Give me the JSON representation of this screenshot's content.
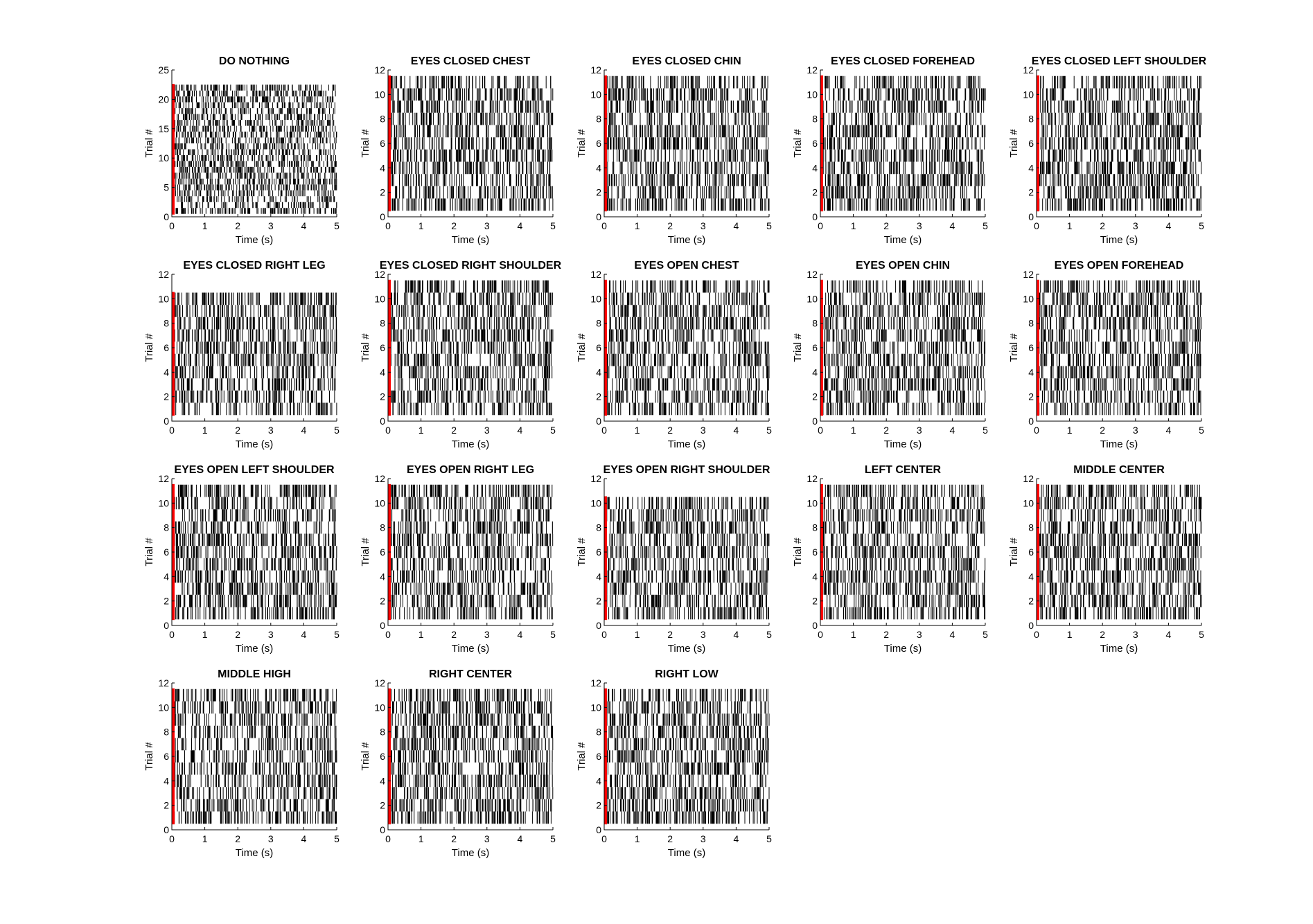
{
  "chart_data": [
    {
      "type": "raster",
      "title": "DO NOTHING",
      "xlabel": "Time (s)",
      "ylabel": "Trial #",
      "xlim": [
        0,
        5
      ],
      "ylim": [
        0,
        25
      ],
      "xticks": [
        0,
        1,
        2,
        3,
        4,
        5
      ],
      "yticks": [
        0,
        5,
        10,
        15,
        20,
        25
      ],
      "n_trials": 22,
      "tick_color": "#000000",
      "stim_marker_color": "#ff0000"
    },
    {
      "type": "raster",
      "title": "EYES CLOSED CHEST",
      "xlabel": "Time (s)",
      "ylabel": "Trial #",
      "xlim": [
        0,
        5
      ],
      "ylim": [
        0,
        12
      ],
      "xticks": [
        0,
        1,
        2,
        3,
        4,
        5
      ],
      "yticks": [
        0,
        2,
        4,
        6,
        8,
        10,
        12
      ],
      "n_trials": 11,
      "tick_color": "#000000",
      "stim_marker_color": "#ff0000"
    },
    {
      "type": "raster",
      "title": "EYES CLOSED CHIN",
      "xlabel": "Time (s)",
      "ylabel": "Trial #",
      "xlim": [
        0,
        5
      ],
      "ylim": [
        0,
        12
      ],
      "xticks": [
        0,
        1,
        2,
        3,
        4,
        5
      ],
      "yticks": [
        0,
        2,
        4,
        6,
        8,
        10,
        12
      ],
      "n_trials": 11,
      "tick_color": "#000000",
      "stim_marker_color": "#ff0000"
    },
    {
      "type": "raster",
      "title": "EYES CLOSED FOREHEAD",
      "xlabel": "Time (s)",
      "ylabel": "Trial #",
      "xlim": [
        0,
        5
      ],
      "ylim": [
        0,
        12
      ],
      "xticks": [
        0,
        1,
        2,
        3,
        4,
        5
      ],
      "yticks": [
        0,
        2,
        4,
        6,
        8,
        10,
        12
      ],
      "n_trials": 11,
      "tick_color": "#000000",
      "stim_marker_color": "#ff0000"
    },
    {
      "type": "raster",
      "title": "EYES CLOSED LEFT SHOULDER",
      "xlabel": "Time (s)",
      "ylabel": "Trial #",
      "xlim": [
        0,
        5
      ],
      "ylim": [
        0,
        12
      ],
      "xticks": [
        0,
        1,
        2,
        3,
        4,
        5
      ],
      "yticks": [
        0,
        2,
        4,
        6,
        8,
        10,
        12
      ],
      "n_trials": 11,
      "tick_color": "#000000",
      "stim_marker_color": "#ff0000"
    },
    {
      "type": "raster",
      "title": "EYES CLOSED RIGHT LEG",
      "xlabel": "Time (s)",
      "ylabel": "Trial #",
      "xlim": [
        0,
        5
      ],
      "ylim": [
        0,
        12
      ],
      "xticks": [
        0,
        1,
        2,
        3,
        4,
        5
      ],
      "yticks": [
        0,
        2,
        4,
        6,
        8,
        10,
        12
      ],
      "n_trials": 10,
      "tick_color": "#000000",
      "stim_marker_color": "#ff0000"
    },
    {
      "type": "raster",
      "title": "EYES CLOSED RIGHT SHOULDER",
      "xlabel": "Time (s)",
      "ylabel": "Trial #",
      "xlim": [
        0,
        5
      ],
      "ylim": [
        0,
        12
      ],
      "xticks": [
        0,
        1,
        2,
        3,
        4,
        5
      ],
      "yticks": [
        0,
        2,
        4,
        6,
        8,
        10,
        12
      ],
      "n_trials": 11,
      "tick_color": "#000000",
      "stim_marker_color": "#ff0000"
    },
    {
      "type": "raster",
      "title": "EYES OPEN CHEST",
      "xlabel": "Time (s)",
      "ylabel": "Trial #",
      "xlim": [
        0,
        5
      ],
      "ylim": [
        0,
        12
      ],
      "xticks": [
        0,
        1,
        2,
        3,
        4,
        5
      ],
      "yticks": [
        0,
        2,
        4,
        6,
        8,
        10,
        12
      ],
      "n_trials": 11,
      "tick_color": "#000000",
      "stim_marker_color": "#ff0000"
    },
    {
      "type": "raster",
      "title": "EYES OPEN CHIN",
      "xlabel": "Time (s)",
      "ylabel": "Trial #",
      "xlim": [
        0,
        5
      ],
      "ylim": [
        0,
        12
      ],
      "xticks": [
        0,
        1,
        2,
        3,
        4,
        5
      ],
      "yticks": [
        0,
        2,
        4,
        6,
        8,
        10,
        12
      ],
      "n_trials": 11,
      "tick_color": "#000000",
      "stim_marker_color": "#ff0000"
    },
    {
      "type": "raster",
      "title": "EYES OPEN FOREHEAD",
      "xlabel": "Time (s)",
      "ylabel": "Trial #",
      "xlim": [
        0,
        5
      ],
      "ylim": [
        0,
        12
      ],
      "xticks": [
        0,
        1,
        2,
        3,
        4,
        5
      ],
      "yticks": [
        0,
        2,
        4,
        6,
        8,
        10,
        12
      ],
      "n_trials": 11,
      "tick_color": "#000000",
      "stim_marker_color": "#ff0000"
    },
    {
      "type": "raster",
      "title": "EYES OPEN LEFT SHOULDER",
      "xlabel": "Time (s)",
      "ylabel": "Trial #",
      "xlim": [
        0,
        5
      ],
      "ylim": [
        0,
        12
      ],
      "xticks": [
        0,
        1,
        2,
        3,
        4,
        5
      ],
      "yticks": [
        0,
        2,
        4,
        6,
        8,
        10,
        12
      ],
      "n_trials": 11,
      "tick_color": "#000000",
      "stim_marker_color": "#ff0000"
    },
    {
      "type": "raster",
      "title": "EYES OPEN RIGHT LEG",
      "xlabel": "Time (s)",
      "ylabel": "Trial #",
      "xlim": [
        0,
        5
      ],
      "ylim": [
        0,
        12
      ],
      "xticks": [
        0,
        1,
        2,
        3,
        4,
        5
      ],
      "yticks": [
        0,
        2,
        4,
        6,
        8,
        10,
        12
      ],
      "n_trials": 11,
      "tick_color": "#000000",
      "stim_marker_color": "#ff0000"
    },
    {
      "type": "raster",
      "title": "EYES OPEN RIGHT SHOULDER",
      "xlabel": "Time (s)",
      "ylabel": "Trial #",
      "xlim": [
        0,
        5
      ],
      "ylim": [
        0,
        12
      ],
      "xticks": [
        0,
        1,
        2,
        3,
        4,
        5
      ],
      "yticks": [
        0,
        2,
        4,
        6,
        8,
        10,
        12
      ],
      "n_trials": 10,
      "tick_color": "#000000",
      "stim_marker_color": "#ff0000"
    },
    {
      "type": "raster",
      "title": "LEFT CENTER",
      "xlabel": "Time (s)",
      "ylabel": "Trial #",
      "xlim": [
        0,
        5
      ],
      "ylim": [
        0,
        12
      ],
      "xticks": [
        0,
        1,
        2,
        3,
        4,
        5
      ],
      "yticks": [
        0,
        2,
        4,
        6,
        8,
        10,
        12
      ],
      "n_trials": 11,
      "tick_color": "#000000",
      "stim_marker_color": "#ff0000"
    },
    {
      "type": "raster",
      "title": "MIDDLE CENTER",
      "xlabel": "Time (s)",
      "ylabel": "Trial #",
      "xlim": [
        0,
        5
      ],
      "ylim": [
        0,
        12
      ],
      "xticks": [
        0,
        1,
        2,
        3,
        4,
        5
      ],
      "yticks": [
        0,
        2,
        4,
        6,
        8,
        10,
        12
      ],
      "n_trials": 11,
      "tick_color": "#000000",
      "stim_marker_color": "#ff0000"
    },
    {
      "type": "raster",
      "title": "MIDDLE HIGH",
      "xlabel": "Time (s)",
      "ylabel": "Trial #",
      "xlim": [
        0,
        5
      ],
      "ylim": [
        0,
        12
      ],
      "xticks": [
        0,
        1,
        2,
        3,
        4,
        5
      ],
      "yticks": [
        0,
        2,
        4,
        6,
        8,
        10,
        12
      ],
      "n_trials": 11,
      "tick_color": "#000000",
      "stim_marker_color": "#ff0000"
    },
    {
      "type": "raster",
      "title": "RIGHT CENTER",
      "xlabel": "Time (s)",
      "ylabel": "Trial #",
      "xlim": [
        0,
        5
      ],
      "ylim": [
        0,
        12
      ],
      "xticks": [
        0,
        1,
        2,
        3,
        4,
        5
      ],
      "yticks": [
        0,
        2,
        4,
        6,
        8,
        10,
        12
      ],
      "n_trials": 11,
      "tick_color": "#000000",
      "stim_marker_color": "#ff0000"
    },
    {
      "type": "raster",
      "title": "RIGHT LOW",
      "xlabel": "Time (s)",
      "ylabel": "Trial #",
      "xlim": [
        0,
        5
      ],
      "ylim": [
        0,
        12
      ],
      "xticks": [
        0,
        1,
        2,
        3,
        4,
        5
      ],
      "yticks": [
        0,
        2,
        4,
        6,
        8,
        10,
        12
      ],
      "n_trials": 11,
      "tick_color": "#000000",
      "stim_marker_color": "#ff0000"
    }
  ]
}
